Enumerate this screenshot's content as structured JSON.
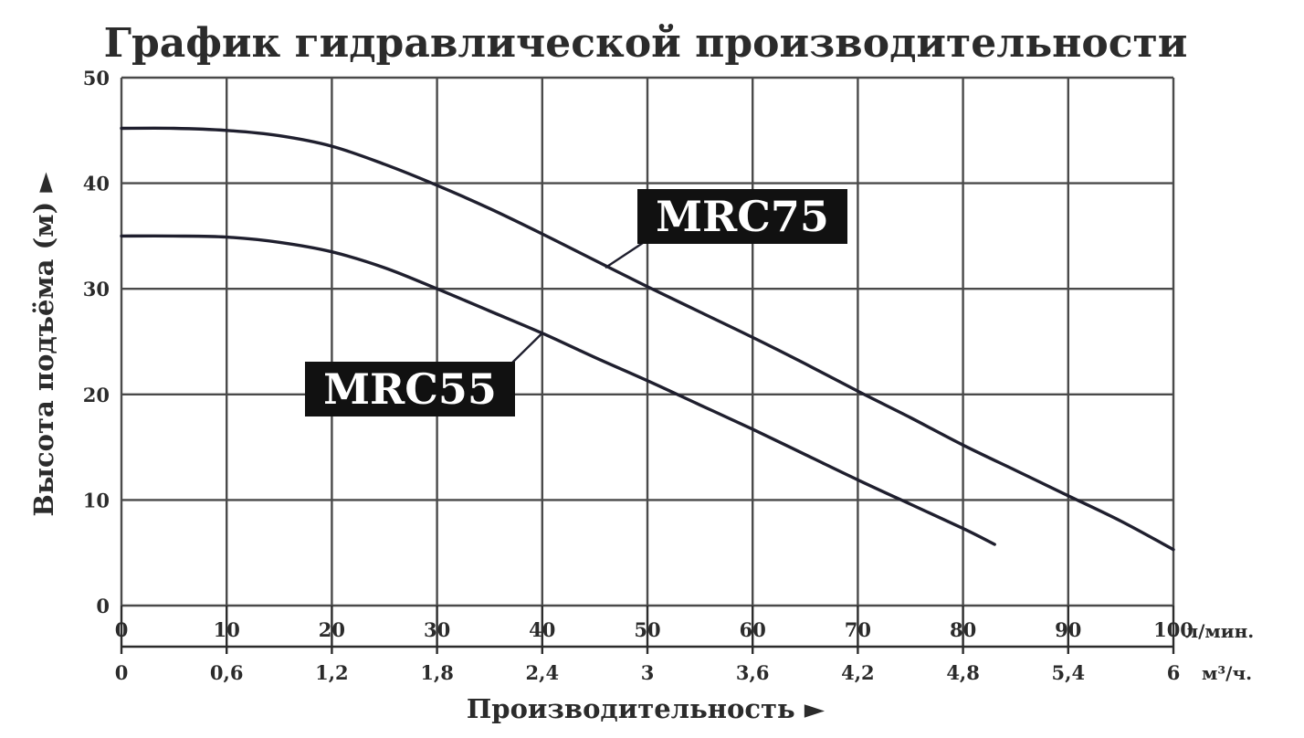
{
  "chart_data": {
    "type": "line",
    "title": "График гидравлической производительности",
    "xlabel": "Производительность ►",
    "ylabel": "Высота подъёма (м) ►",
    "x_unit": "л/мин.",
    "x2_unit": "м³/ч.",
    "xlim": [
      0,
      100
    ],
    "ylim": [
      0,
      50
    ],
    "x_ticks": [
      "0",
      "10",
      "20",
      "30",
      "40",
      "50",
      "60",
      "70",
      "80",
      "90",
      "100"
    ],
    "x2_ticks": [
      "0",
      "0,6",
      "1,2",
      "1,8",
      "2,4",
      "3",
      "3,6",
      "4,2",
      "4,8",
      "5,4",
      "6"
    ],
    "y_ticks": [
      "0",
      "10",
      "20",
      "30",
      "40",
      "50"
    ],
    "grid": true,
    "series": [
      {
        "name": "MRC75",
        "x": [
          0,
          5,
          10,
          15,
          20,
          25,
          30,
          35,
          40,
          45,
          50,
          55,
          60,
          65,
          70,
          75,
          80,
          85,
          90,
          95,
          100
        ],
        "y": [
          45.2,
          45.2,
          45,
          44.5,
          43.5,
          41.8,
          39.8,
          37.6,
          35.2,
          32.7,
          30.2,
          27.8,
          25.4,
          22.9,
          20.3,
          17.8,
          15.2,
          12.8,
          10.4,
          8,
          5.3
        ]
      },
      {
        "name": "MRC55",
        "x": [
          0,
          5,
          10,
          15,
          20,
          25,
          30,
          35,
          40,
          45,
          50,
          55,
          60,
          65,
          70,
          75,
          80,
          83
        ],
        "y": [
          35,
          35,
          34.9,
          34.4,
          33.5,
          32,
          30,
          27.9,
          25.8,
          23.5,
          21.3,
          19,
          16.7,
          14.3,
          11.9,
          9.6,
          7.3,
          5.8
        ]
      }
    ],
    "annotations": [
      {
        "text": "MRC75",
        "series": "MRC75",
        "anchor_x": 46,
        "anchor_y": 32
      },
      {
        "text": "MRC55",
        "series": "MRC55",
        "anchor_x": 40,
        "anchor_y": 25.8
      }
    ]
  }
}
